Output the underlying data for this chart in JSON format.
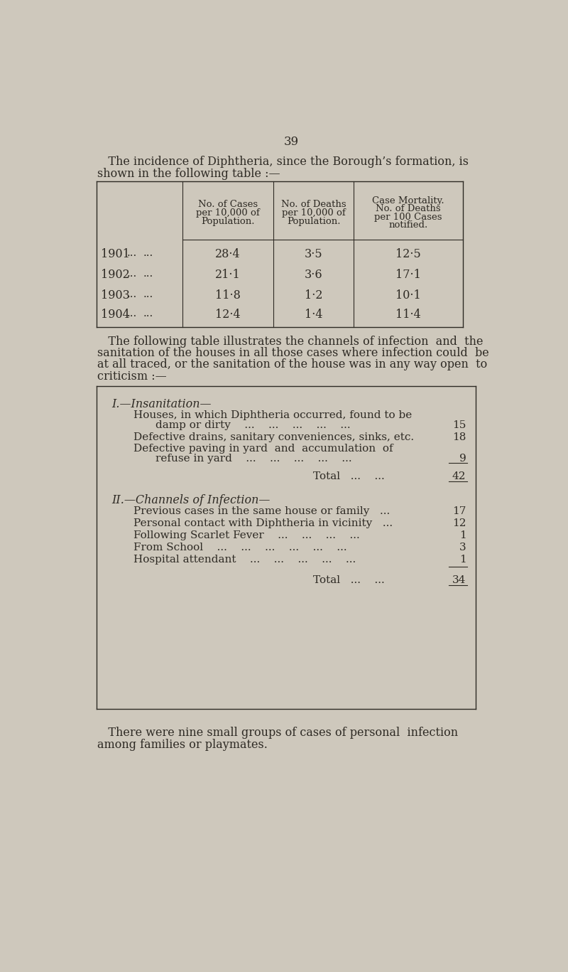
{
  "bg_color": "#cec8bc",
  "text_color": "#2e2a24",
  "page_number": "39",
  "intro_text1": "   The incidence of Diphtheria, since the Borough’s formation, is",
  "intro_text2": "shown in the following table :—",
  "table1_col_headers": [
    "No. of Cases\nper 10,000 of\nPopulation.",
    "No. of Deaths\nper 10,000 of\nPopulation.",
    "Case Mortality.\nNo. of Deaths\nper 100 Cases\nnotified."
  ],
  "table1_rows": [
    {
      "year": "1901",
      "c1": "28·4",
      "c2": "3·5",
      "c3": "12·5"
    },
    {
      "year": "1902",
      "c1": "21·1",
      "c2": "3·6",
      "c3": "17·1"
    },
    {
      "year": "1903",
      "c1": "11·8",
      "c2": "1·2",
      "c3": "10·1"
    },
    {
      "year": "1904",
      "c1": "12·4",
      "c2": "1·4",
      "c3": "11·4"
    }
  ],
  "middle_text": [
    "   The following table illustrates the channels of infection  and  the",
    "sanitation of the houses in all those cases where infection could  be",
    "at all traced, or the sanitation of the house was in any way open  to",
    "criticism :—"
  ],
  "table2_section1_title": "I.—Insanitation—",
  "table2_section2_title": "II.—Channels of Infection—",
  "footer_text1": "   There were nine small groups of cases of personal  infection",
  "footer_text2": "among families or playmates."
}
